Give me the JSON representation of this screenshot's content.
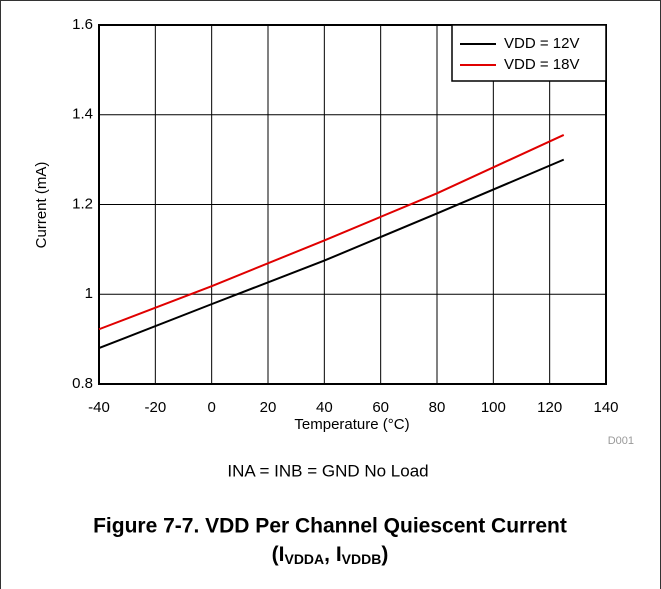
{
  "chart_data": {
    "type": "line",
    "x": [
      -40,
      0,
      40,
      80,
      125
    ],
    "series": [
      {
        "name": "VDD = 12V",
        "color": "#000000",
        "values": [
          0.88,
          0.978,
          1.075,
          1.18,
          1.3
        ]
      },
      {
        "name": "VDD = 18V",
        "color": "#e00000",
        "values": [
          0.922,
          1.018,
          1.12,
          1.225,
          1.355
        ]
      }
    ],
    "xlabel": "Temperature (°C)",
    "ylabel": "Current (mA)",
    "xlim": [
      -40,
      140
    ],
    "xticks": [
      -40,
      -20,
      0,
      20,
      40,
      60,
      80,
      100,
      120,
      140
    ],
    "ylim": [
      0.8,
      1.6
    ],
    "yticks": [
      0.8,
      1,
      1.2,
      1.4,
      1.6
    ],
    "grid": true,
    "legend": "upper right",
    "code": "D001",
    "note": "INA = INB = GND No Load",
    "caption": "Figure 7-7. VDD Per Channel Quiescent Current",
    "caption_line2": [
      "(I",
      "VDDA",
      ", I",
      "VDDB",
      ")"
    ]
  }
}
